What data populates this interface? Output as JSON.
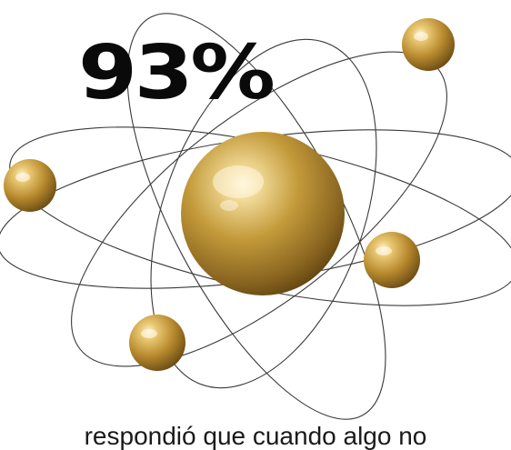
{
  "headline": {
    "percent": "93%"
  },
  "caption": {
    "text": "respondió que cuando algo no"
  },
  "illustration": {
    "subject": "atom-model",
    "colors": {
      "gold_light": "#f3dc9a",
      "gold_mid": "#c39a3a",
      "gold_dark": "#6e4f14",
      "orbit": "#3a3a3a",
      "text": "#0a0a0a"
    }
  }
}
